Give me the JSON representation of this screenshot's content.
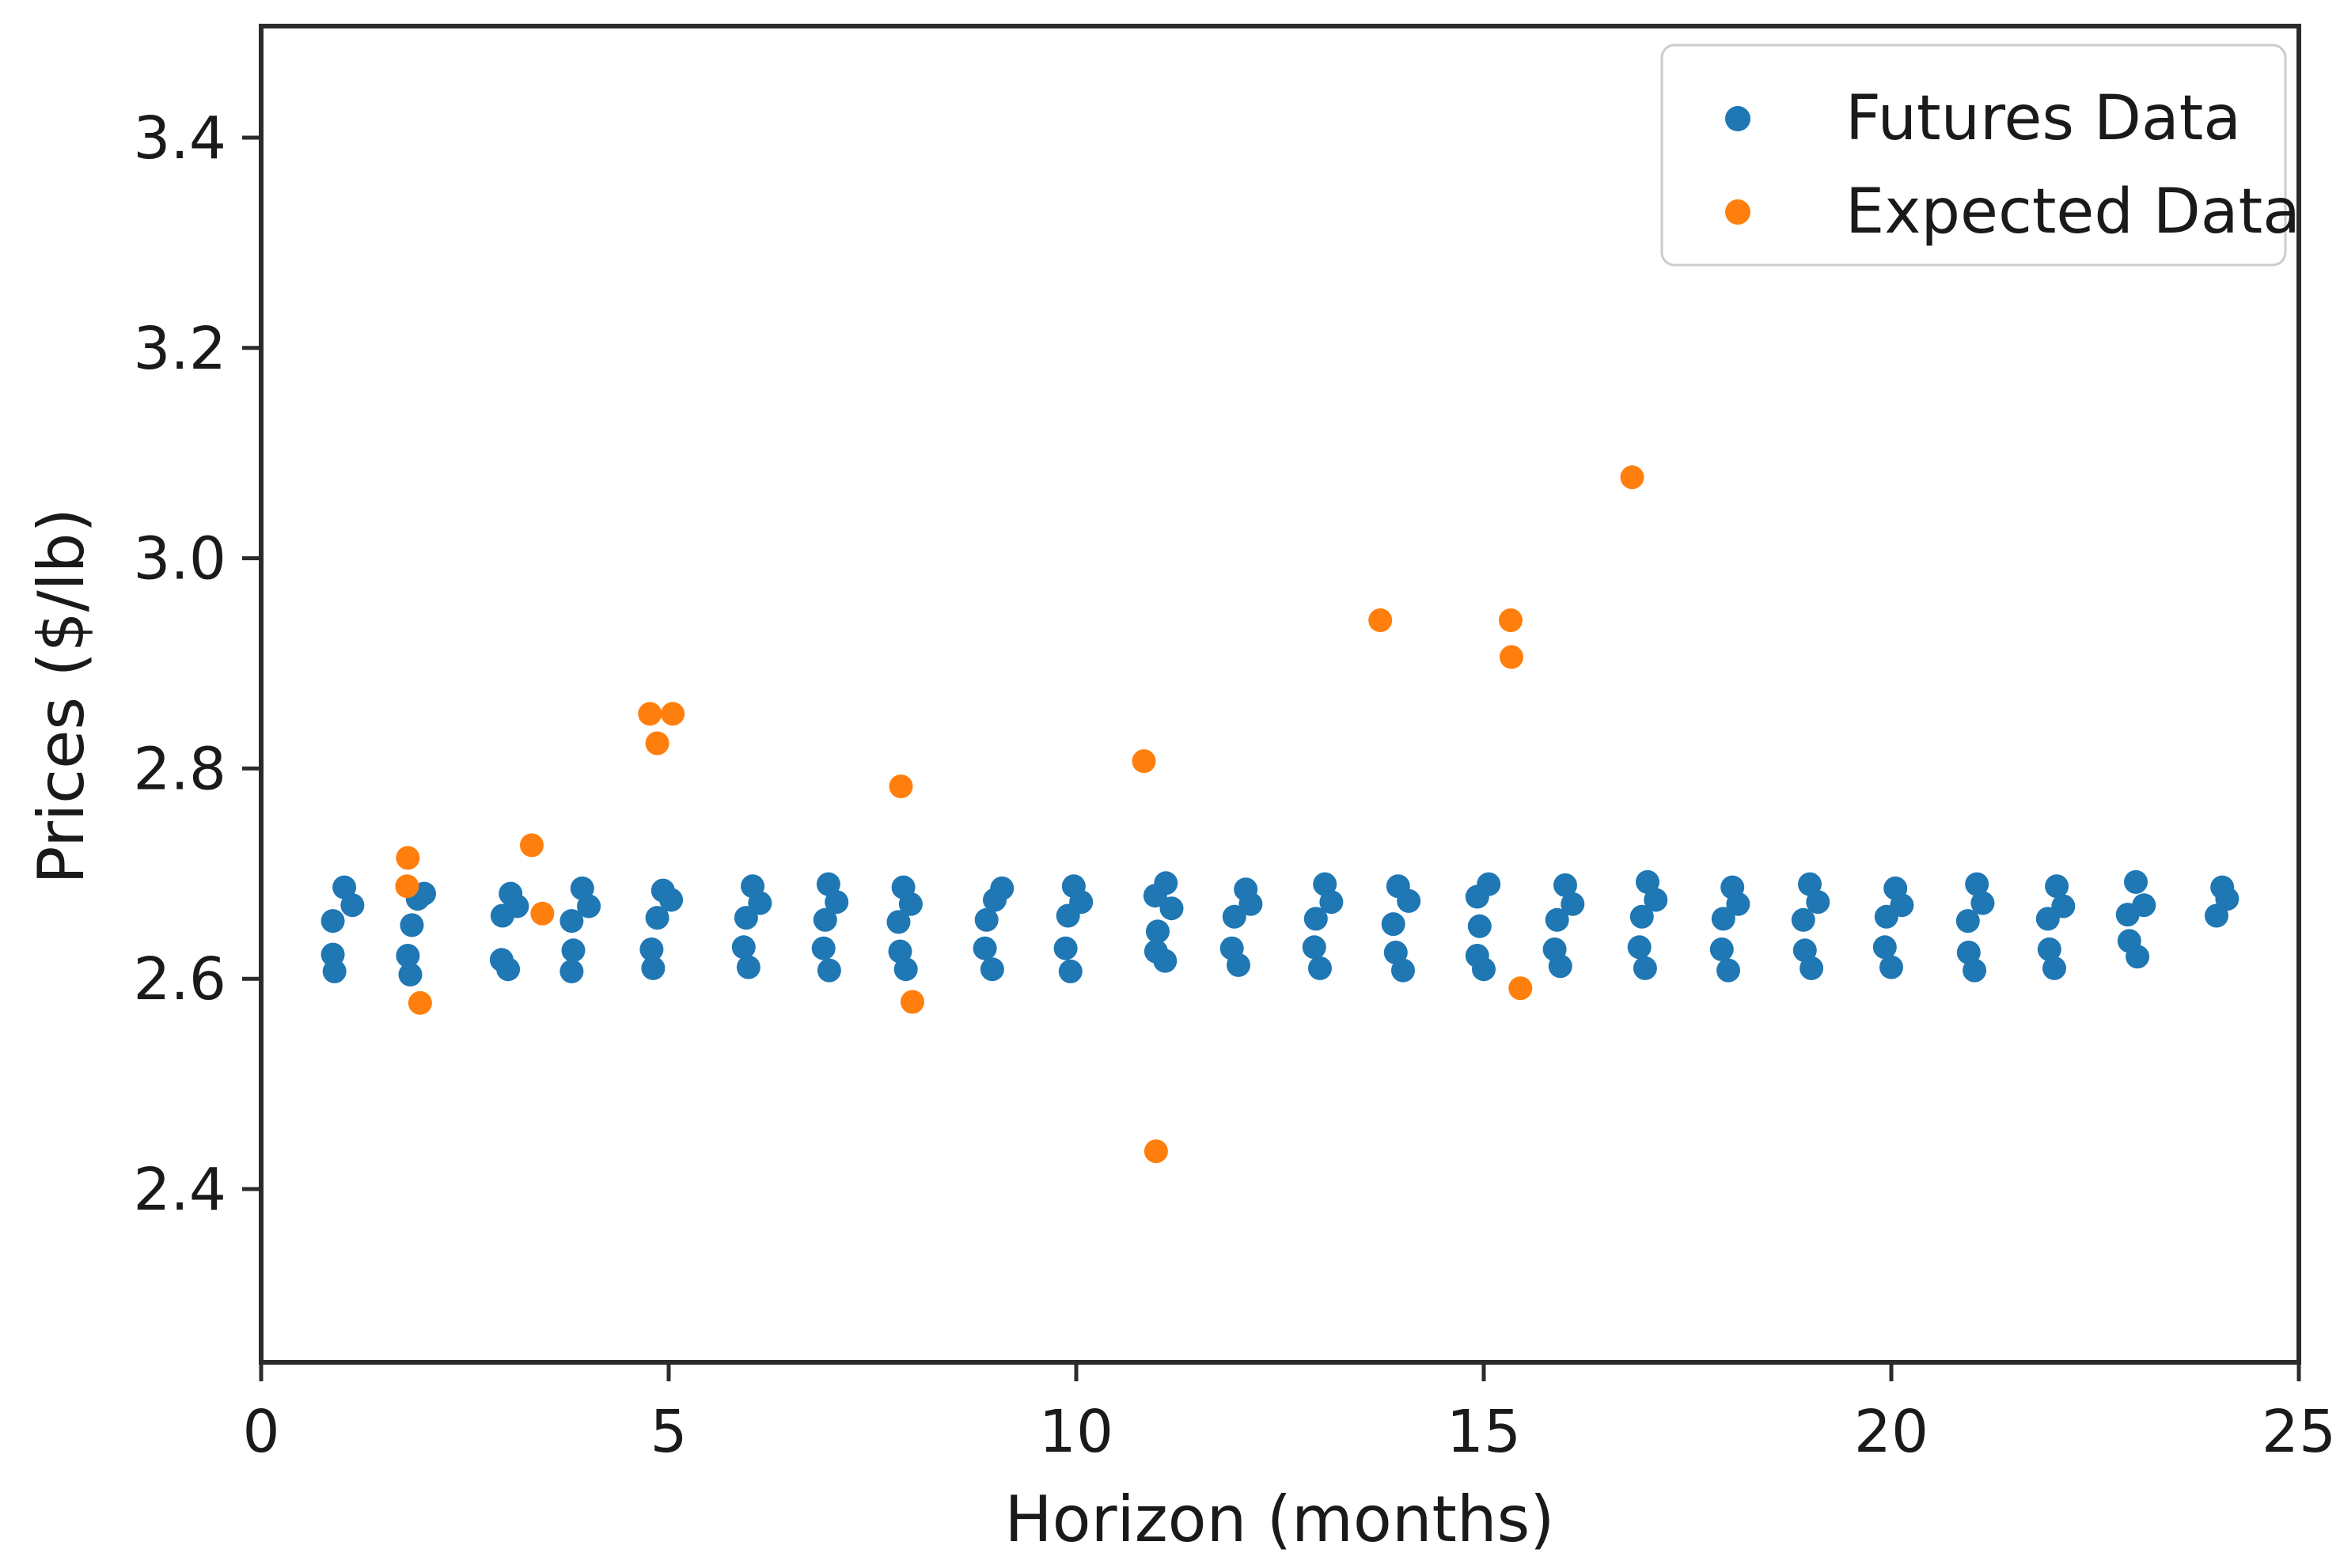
{
  "chart_data": {
    "type": "scatter",
    "title": "",
    "xlabel": "Horizon (months)",
    "ylabel": "Prices ($/lb)",
    "xlim": [
      0,
      25
    ],
    "ylim": [
      2.23,
      3.51
    ],
    "x_ticks": [
      0,
      5,
      10,
      15,
      20,
      25
    ],
    "x_tick_labels": [
      "0",
      "5",
      "10",
      "15",
      "20",
      "25"
    ],
    "y_ticks": [
      2.4,
      2.6,
      2.8,
      3.0,
      3.2,
      3.4
    ],
    "y_tick_labels": [
      "2.4",
      "2.6",
      "2.8",
      "3.0",
      "3.2",
      "3.4"
    ],
    "grid": false,
    "legend_position": "upper right",
    "series": [
      {
        "name": "Futures Data",
        "color": "#1f77b4",
        "marker": "circle",
        "points": [
          [
            1.02,
            2.687
          ],
          [
            1.12,
            2.67
          ],
          [
            0.88,
            2.655
          ],
          [
            0.88,
            2.623
          ],
          [
            0.9,
            2.607
          ],
          [
            2.0,
            2.681
          ],
          [
            1.92,
            2.676
          ],
          [
            1.85,
            2.651
          ],
          [
            1.8,
            2.622
          ],
          [
            1.83,
            2.604
          ],
          [
            3.06,
            2.681
          ],
          [
            3.14,
            2.669
          ],
          [
            2.96,
            2.66
          ],
          [
            2.95,
            2.618
          ],
          [
            3.03,
            2.609
          ],
          [
            3.94,
            2.686
          ],
          [
            4.02,
            2.669
          ],
          [
            3.81,
            2.655
          ],
          [
            3.83,
            2.627
          ],
          [
            3.81,
            2.607
          ],
          [
            4.93,
            2.684
          ],
          [
            5.03,
            2.675
          ],
          [
            4.86,
            2.658
          ],
          [
            4.79,
            2.628
          ],
          [
            4.81,
            2.61
          ],
          [
            6.03,
            2.688
          ],
          [
            6.12,
            2.672
          ],
          [
            5.95,
            2.658
          ],
          [
            5.92,
            2.63
          ],
          [
            5.98,
            2.611
          ],
          [
            6.96,
            2.69
          ],
          [
            7.06,
            2.673
          ],
          [
            6.92,
            2.656
          ],
          [
            6.9,
            2.629
          ],
          [
            6.97,
            2.608
          ],
          [
            7.88,
            2.687
          ],
          [
            7.97,
            2.671
          ],
          [
            7.82,
            2.654
          ],
          [
            7.84,
            2.626
          ],
          [
            7.91,
            2.609
          ],
          [
            9.09,
            2.686
          ],
          [
            9.0,
            2.675
          ],
          [
            8.9,
            2.656
          ],
          [
            8.88,
            2.629
          ],
          [
            8.97,
            2.609
          ],
          [
            9.97,
            2.688
          ],
          [
            10.06,
            2.673
          ],
          [
            9.9,
            2.66
          ],
          [
            9.87,
            2.629
          ],
          [
            9.93,
            2.607
          ],
          [
            11.1,
            2.691
          ],
          [
            10.97,
            2.679
          ],
          [
            11.17,
            2.667
          ],
          [
            11.0,
            2.645
          ],
          [
            10.98,
            2.626
          ],
          [
            11.09,
            2.617
          ],
          [
            12.08,
            2.685
          ],
          [
            12.14,
            2.671
          ],
          [
            11.94,
            2.659
          ],
          [
            11.91,
            2.629
          ],
          [
            11.99,
            2.613
          ],
          [
            13.05,
            2.69
          ],
          [
            13.13,
            2.673
          ],
          [
            12.94,
            2.657
          ],
          [
            12.92,
            2.63
          ],
          [
            12.99,
            2.61
          ],
          [
            13.95,
            2.688
          ],
          [
            14.08,
            2.674
          ],
          [
            13.89,
            2.652
          ],
          [
            13.92,
            2.625
          ],
          [
            14.01,
            2.608
          ],
          [
            15.06,
            2.69
          ],
          [
            14.92,
            2.678
          ],
          [
            14.95,
            2.65
          ],
          [
            14.92,
            2.622
          ],
          [
            15.0,
            2.609
          ],
          [
            16.0,
            2.689
          ],
          [
            16.09,
            2.671
          ],
          [
            15.9,
            2.656
          ],
          [
            15.87,
            2.628
          ],
          [
            15.94,
            2.612
          ],
          [
            17.01,
            2.692
          ],
          [
            17.11,
            2.675
          ],
          [
            16.94,
            2.659
          ],
          [
            16.91,
            2.63
          ],
          [
            16.98,
            2.61
          ],
          [
            18.05,
            2.687
          ],
          [
            18.12,
            2.671
          ],
          [
            17.94,
            2.657
          ],
          [
            17.92,
            2.628
          ],
          [
            18.0,
            2.608
          ],
          [
            19.0,
            2.69
          ],
          [
            19.1,
            2.673
          ],
          [
            18.92,
            2.656
          ],
          [
            18.94,
            2.627
          ],
          [
            19.02,
            2.61
          ],
          [
            20.05,
            2.686
          ],
          [
            20.13,
            2.67
          ],
          [
            19.94,
            2.659
          ],
          [
            19.92,
            2.63
          ],
          [
            20.0,
            2.611
          ],
          [
            21.05,
            2.69
          ],
          [
            21.12,
            2.672
          ],
          [
            20.94,
            2.655
          ],
          [
            20.95,
            2.625
          ],
          [
            21.02,
            2.608
          ],
          [
            22.03,
            2.688
          ],
          [
            22.11,
            2.669
          ],
          [
            21.92,
            2.657
          ],
          [
            21.94,
            2.628
          ],
          [
            22.0,
            2.61
          ],
          [
            23.0,
            2.692
          ],
          [
            23.1,
            2.67
          ],
          [
            22.9,
            2.661
          ],
          [
            22.92,
            2.636
          ],
          [
            23.02,
            2.621
          ],
          [
            24.06,
            2.687
          ],
          [
            24.12,
            2.676
          ],
          [
            23.99,
            2.66
          ]
        ]
      },
      {
        "name": "Expected Data",
        "color": "#ff7f0e",
        "marker": "circle",
        "points": [
          [
            1.8,
            2.715
          ],
          [
            1.79,
            2.688
          ],
          [
            1.95,
            2.577
          ],
          [
            3.32,
            2.727
          ],
          [
            3.45,
            2.662
          ],
          [
            4.77,
            2.852
          ],
          [
            5.05,
            2.852
          ],
          [
            4.86,
            2.824
          ],
          [
            7.85,
            2.783
          ],
          [
            7.99,
            2.578
          ],
          [
            10.83,
            2.807
          ],
          [
            10.98,
            2.436
          ],
          [
            13.73,
            2.941
          ],
          [
            15.33,
            2.941
          ],
          [
            15.34,
            2.906
          ],
          [
            15.45,
            2.591
          ],
          [
            16.82,
            3.077
          ]
        ]
      }
    ]
  },
  "style": {
    "axis_color": "#2b2b2b",
    "tick_label_color": "#1a1a1a",
    "legend_border_color": "#cccccc",
    "background_color": "#ffffff",
    "futures_color": "#1f77b4",
    "expected_color": "#ff7f0e"
  }
}
